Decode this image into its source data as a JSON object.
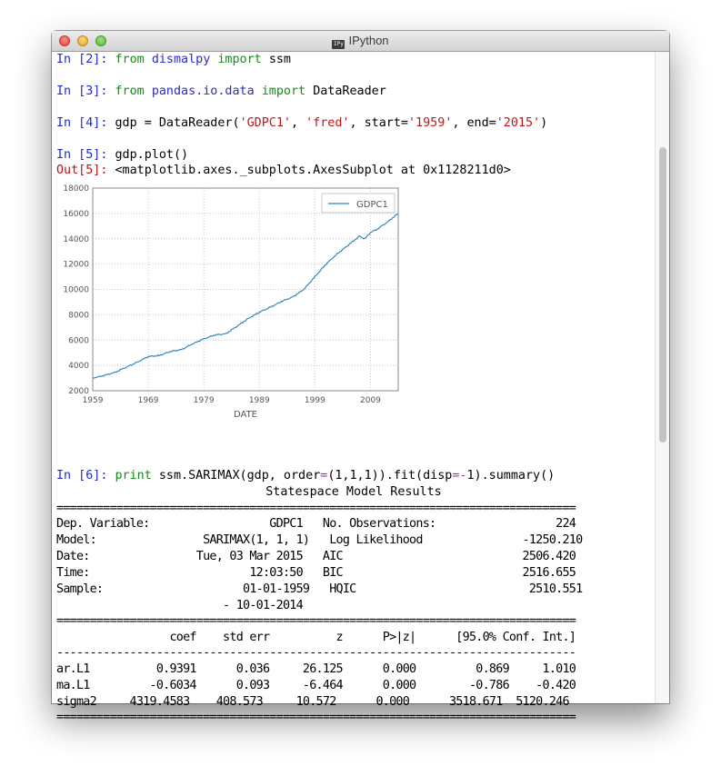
{
  "window": {
    "title": "IPython",
    "app_icon": "IPy"
  },
  "cells": [
    {
      "prompt": "In [2]:",
      "kw1": "from",
      "mod": "dismalpy",
      "kw2": "import",
      "name": "ssm"
    },
    {
      "prompt": "In [3]:",
      "kw1": "from",
      "mod": "pandas.io.data",
      "kw2": "import",
      "name": "DataReader"
    },
    {
      "prompt": "In [4]:",
      "c1": "gdp = DataReader(",
      "s1": "'GDPC1'",
      "c2": ", ",
      "s2": "'fred'",
      "c3": ", start=",
      "s3": "'1959'",
      "c4": ", end=",
      "s4": "'2015'",
      "c5": ")"
    },
    {
      "prompt": "In [5]:",
      "code": "gdp.plot()",
      "out_prompt": "Out[5]:",
      "out": "<matplotlib.axes._subplots.AxesSubplot at 0x1128211d0>"
    },
    {
      "prompt": "In [6]:",
      "kw": "print",
      "c1": " ssm.SARIMAX(gdp, order",
      "o1": "=",
      "c2": "(1,1,1)).fit(disp",
      "o2": "=-",
      "c3": "1).summary()"
    }
  ],
  "chart_data": {
    "type": "line",
    "series": [
      {
        "name": "GDPC1",
        "color": "#2980b9"
      }
    ],
    "x": [
      1959,
      1961,
      1963,
      1965,
      1967,
      1969,
      1971,
      1973,
      1975,
      1977,
      1979,
      1981,
      1983,
      1985,
      1987,
      1989,
      1991,
      1993,
      1995,
      1997,
      1999,
      2001,
      2003,
      2005,
      2007,
      2008,
      2009,
      2010,
      2012,
      2014
    ],
    "y": [
      3000,
      3200,
      3450,
      3850,
      4250,
      4700,
      4780,
      5100,
      5250,
      5700,
      6100,
      6400,
      6500,
      7100,
      7700,
      8200,
      8600,
      9050,
      9400,
      10000,
      11000,
      12000,
      12800,
      13500,
      14200,
      14000,
      14500,
      14700,
      15300,
      16000
    ],
    "xlabel": "DATE",
    "xticks": [
      "1959",
      "1969",
      "1979",
      "1989",
      "1999",
      "2009"
    ],
    "yticks": [
      "2000",
      "4000",
      "6000",
      "8000",
      "10000",
      "12000",
      "14000",
      "16000",
      "18000"
    ],
    "xlim": [
      1959,
      2014
    ],
    "ylim": [
      2000,
      18000
    ],
    "grid": true,
    "legend": "top-right"
  },
  "summary": {
    "title": "Statespace Model Results",
    "sep_double": "==============================================================================",
    "sep_single": "------------------------------------------------------------------------------",
    "rows": [
      "Dep. Variable:                  GDPC1   No. Observations:                  224",
      "Model:                SARIMAX(1, 1, 1)   Log Likelihood               -1250.210",
      "Date:                Tue, 03 Mar 2015   AIC                           2506.420",
      "Time:                        12:03:50   BIC                           2516.655",
      "Sample:                     01-01-1959   HQIC                          2510.551",
      "                         - 10-01-2014"
    ],
    "header": "                 coef    std err          z      P>|z|      [95.0% Conf. Int.]",
    "params": [
      "ar.L1          0.9391      0.036     26.125      0.000         0.869     1.010",
      "ma.L1         -0.6034      0.093     -6.464      0.000        -0.786    -0.420",
      "sigma2     4319.4583    408.573     10.572      0.000      3518.671  5120.246"
    ]
  }
}
